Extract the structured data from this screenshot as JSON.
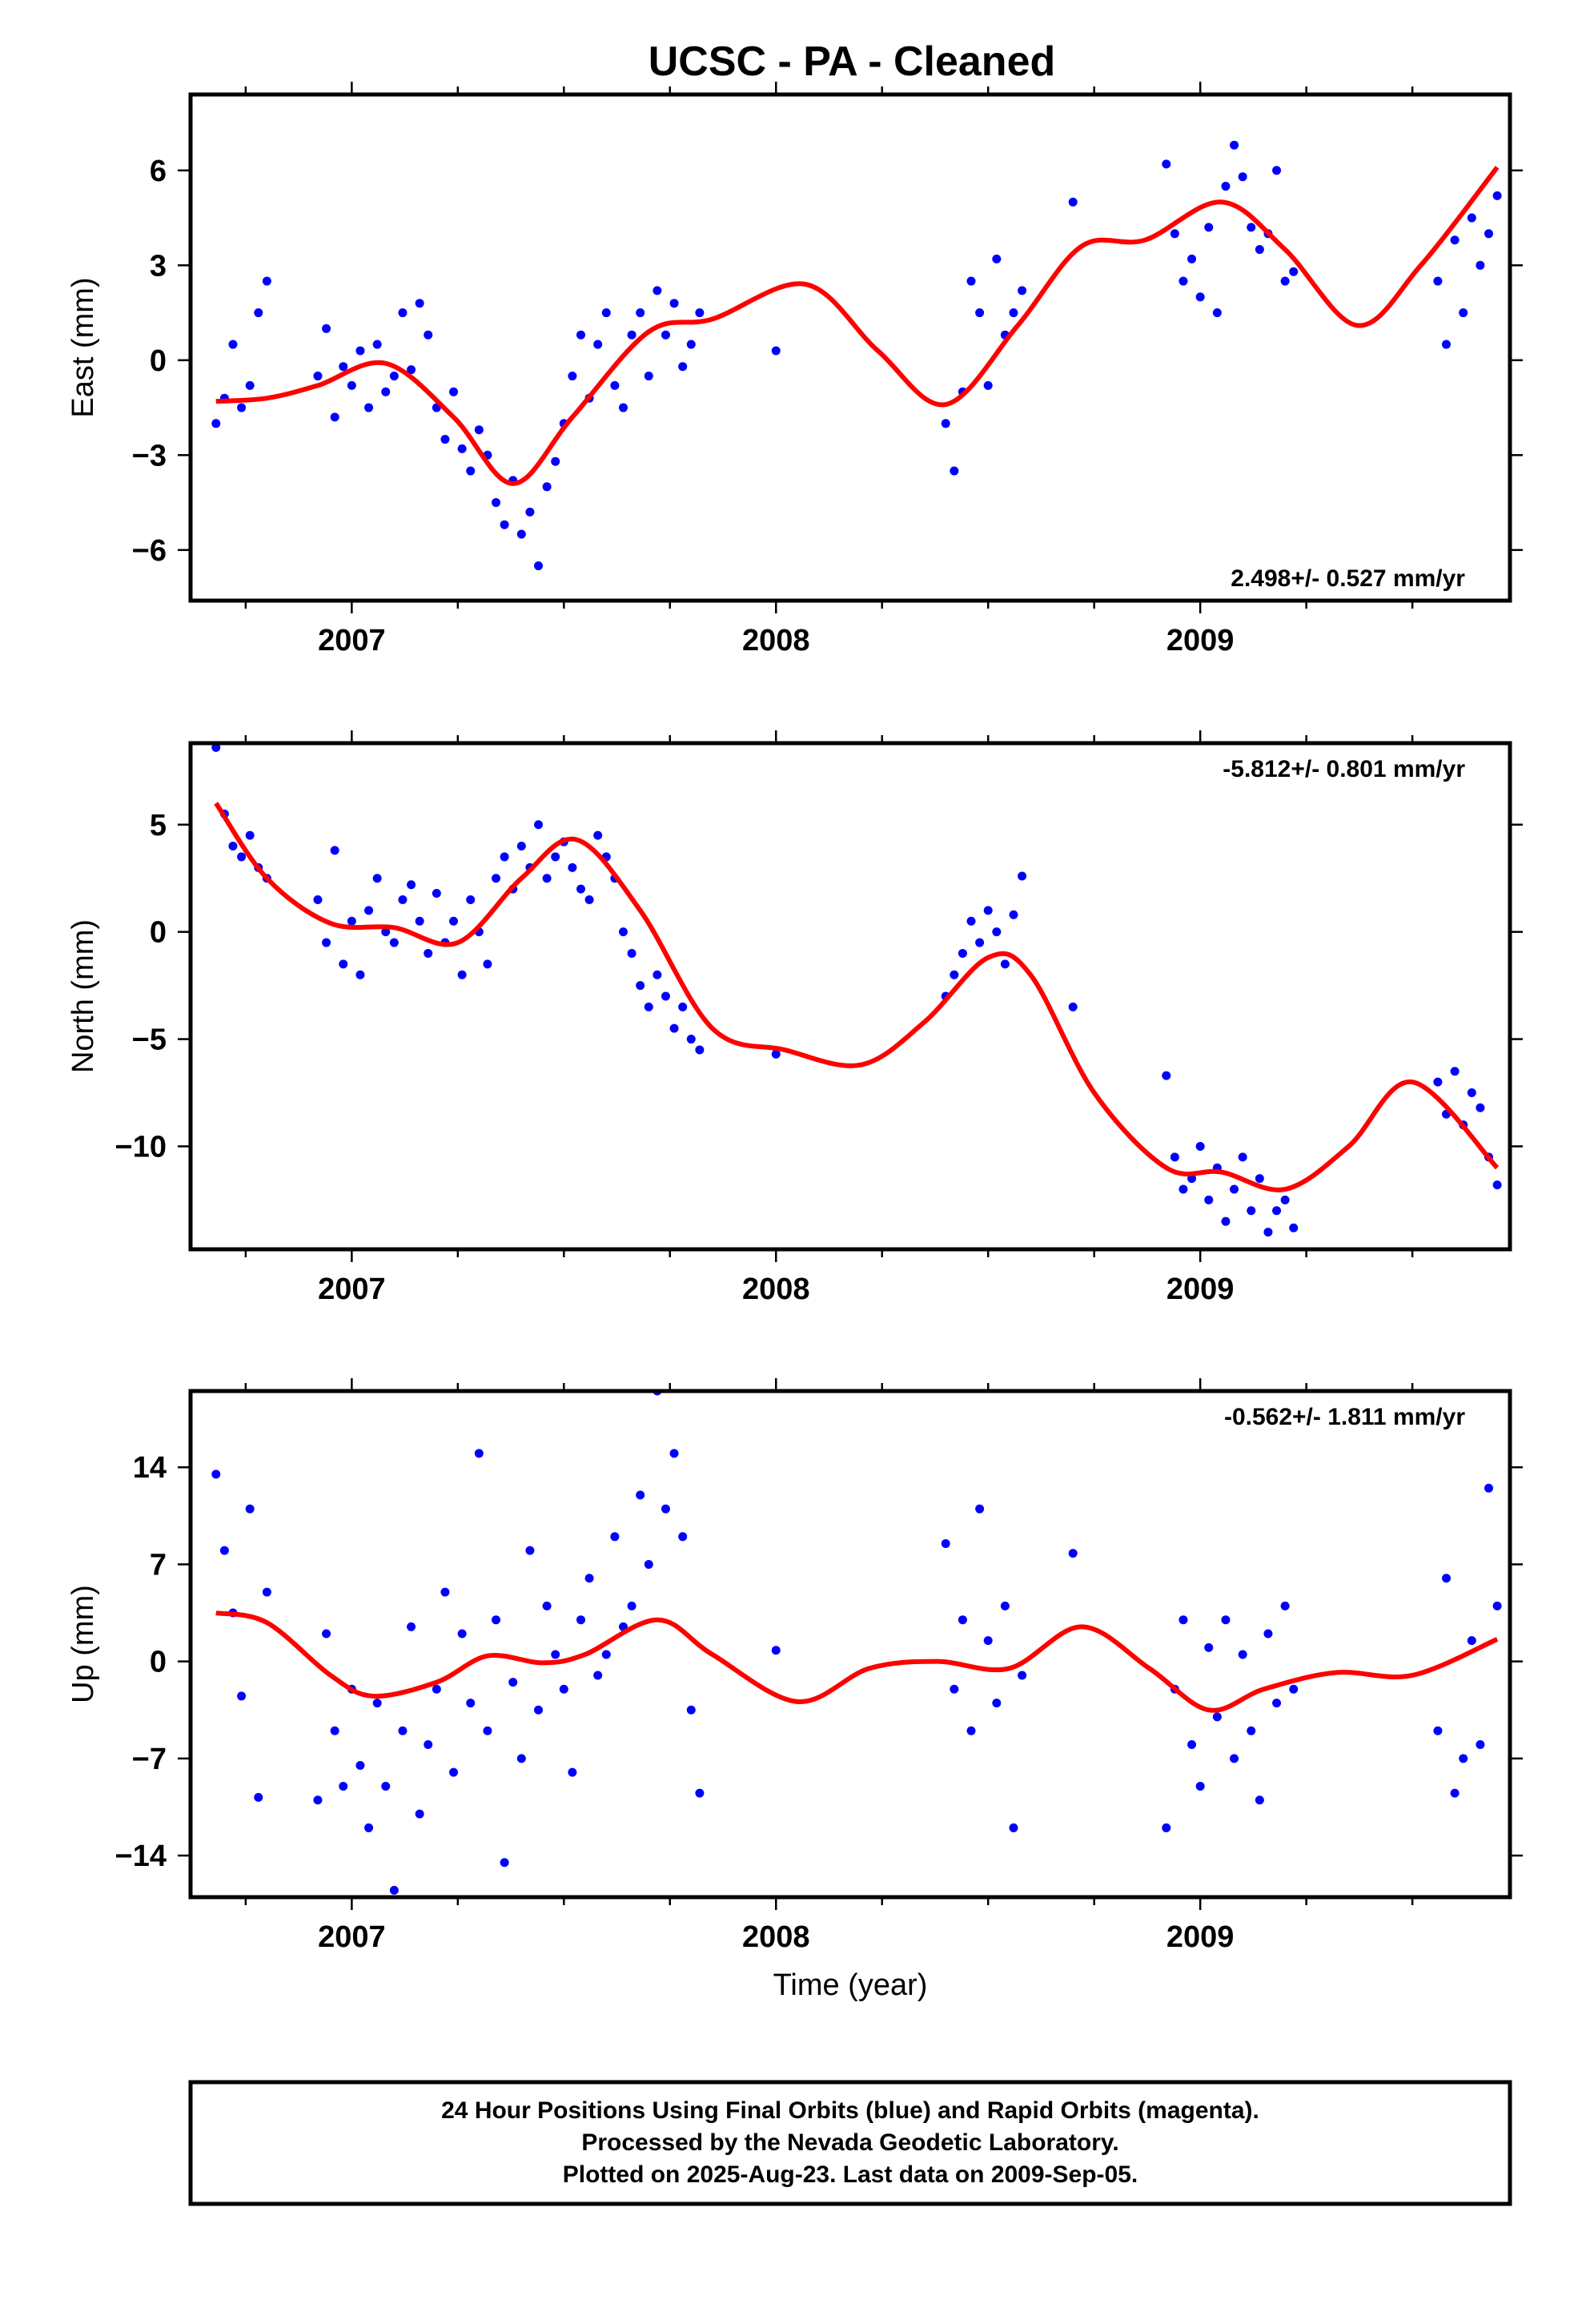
{
  "title": "UCSC  - PA - Cleaned",
  "colors": {
    "points": "#0000ff",
    "fit": "#ff0000",
    "frame": "#000000"
  },
  "chart_data": [
    {
      "type": "scatter",
      "name": "east",
      "ylabel": "East (mm)",
      "xlabel": "",
      "xlim": [
        2006.62,
        2009.73
      ],
      "ylim": [
        -7.6,
        8.4
      ],
      "yticks": [
        -6,
        -3,
        0,
        3,
        6
      ],
      "xticks": [
        2007,
        2008,
        2009
      ],
      "rate": "2.498+/- 0.527 mm/yr",
      "rate_position": "bottom-right",
      "points_x": [
        2006.68,
        2006.7,
        2006.72,
        2006.74,
        2006.76,
        2006.78,
        2006.8,
        2006.92,
        2006.94,
        2006.96,
        2006.98,
        2007.0,
        2007.02,
        2007.04,
        2007.06,
        2007.08,
        2007.1,
        2007.12,
        2007.14,
        2007.16,
        2007.18,
        2007.2,
        2007.22,
        2007.24,
        2007.26,
        2007.28,
        2007.3,
        2007.32,
        2007.34,
        2007.36,
        2007.38,
        2007.4,
        2007.42,
        2007.44,
        2007.46,
        2007.48,
        2007.5,
        2007.52,
        2007.54,
        2007.56,
        2007.58,
        2007.6,
        2007.62,
        2007.64,
        2007.66,
        2007.68,
        2007.7,
        2007.72,
        2007.74,
        2007.76,
        2007.78,
        2007.8,
        2007.82,
        2008.0,
        2008.4,
        2008.42,
        2008.44,
        2008.46,
        2008.48,
        2008.5,
        2008.52,
        2008.54,
        2008.56,
        2008.58,
        2008.7,
        2008.92,
        2008.94,
        2008.96,
        2008.98,
        2009.0,
        2009.02,
        2009.04,
        2009.06,
        2009.08,
        2009.1,
        2009.12,
        2009.14,
        2009.16,
        2009.18,
        2009.2,
        2009.22,
        2009.56,
        2009.58,
        2009.6,
        2009.62,
        2009.64,
        2009.66,
        2009.68,
        2009.7
      ],
      "points_y": [
        -2.0,
        -1.2,
        0.5,
        -1.5,
        -0.8,
        1.5,
        2.5,
        -0.5,
        1.0,
        -1.8,
        -0.2,
        -0.8,
        0.3,
        -1.5,
        0.5,
        -1.0,
        -0.5,
        1.5,
        -0.3,
        1.8,
        0.8,
        -1.5,
        -2.5,
        -1.0,
        -2.8,
        -3.5,
        -2.2,
        -3.0,
        -4.5,
        -5.2,
        -3.8,
        -5.5,
        -4.8,
        -6.5,
        -4.0,
        -3.2,
        -2.0,
        -0.5,
        0.8,
        -1.2,
        0.5,
        1.5,
        -0.8,
        -1.5,
        0.8,
        1.5,
        -0.5,
        2.2,
        0.8,
        1.8,
        -0.2,
        0.5,
        1.5,
        0.3,
        -2.0,
        -3.5,
        -1.0,
        2.5,
        1.5,
        -0.8,
        3.2,
        0.8,
        1.5,
        2.2,
        5.0,
        6.2,
        4.0,
        2.5,
        3.2,
        2.0,
        4.2,
        1.5,
        5.5,
        6.8,
        5.8,
        4.2,
        3.5,
        4.0,
        6.0,
        2.5,
        2.8,
        2.5,
        0.5,
        3.8,
        1.5,
        4.5,
        3.0,
        4.0,
        5.2
      ],
      "fit_x": [
        2006.68,
        2006.8,
        2006.92,
        2007.08,
        2007.24,
        2007.38,
        2007.52,
        2007.7,
        2007.85,
        2008.07,
        2008.24,
        2008.4,
        2008.57,
        2008.72,
        2008.87,
        2009.05,
        2009.2,
        2009.37,
        2009.52,
        2009.7
      ],
      "fit_y": [
        -1.3,
        -1.2,
        -0.8,
        -0.1,
        -1.8,
        -3.9,
        -1.8,
        0.9,
        1.3,
        2.4,
        0.3,
        -1.4,
        1.1,
        3.6,
        3.8,
        5.0,
        3.5,
        1.1,
        3.0,
        6.1
      ]
    },
    {
      "type": "scatter",
      "name": "north",
      "ylabel": "North (mm)",
      "xlabel": "",
      "xlim": [
        2006.62,
        2009.73
      ],
      "ylim": [
        -14.8,
        8.8
      ],
      "yticks": [
        -10,
        -5,
        0,
        5
      ],
      "xticks": [
        2007,
        2008,
        2009
      ],
      "rate": "-5.812+/- 0.801 mm/yr",
      "rate_position": "top-right",
      "points_x": [
        2006.68,
        2006.7,
        2006.72,
        2006.74,
        2006.76,
        2006.78,
        2006.8,
        2006.92,
        2006.94,
        2006.96,
        2006.98,
        2007.0,
        2007.02,
        2007.04,
        2007.06,
        2007.08,
        2007.1,
        2007.12,
        2007.14,
        2007.16,
        2007.18,
        2007.2,
        2007.22,
        2007.24,
        2007.26,
        2007.28,
        2007.3,
        2007.32,
        2007.34,
        2007.36,
        2007.38,
        2007.4,
        2007.42,
        2007.44,
        2007.46,
        2007.48,
        2007.5,
        2007.52,
        2007.54,
        2007.56,
        2007.58,
        2007.6,
        2007.62,
        2007.64,
        2007.66,
        2007.68,
        2007.7,
        2007.72,
        2007.74,
        2007.76,
        2007.78,
        2007.8,
        2007.82,
        2008.0,
        2008.4,
        2008.42,
        2008.44,
        2008.46,
        2008.48,
        2008.5,
        2008.52,
        2008.54,
        2008.56,
        2008.58,
        2008.7,
        2008.92,
        2008.94,
        2008.96,
        2008.98,
        2009.0,
        2009.02,
        2009.04,
        2009.06,
        2009.08,
        2009.1,
        2009.12,
        2009.14,
        2009.16,
        2009.18,
        2009.2,
        2009.22,
        2009.56,
        2009.58,
        2009.6,
        2009.62,
        2009.64,
        2009.66,
        2009.68,
        2009.7
      ],
      "points_y": [
        8.6,
        5.5,
        4.0,
        3.5,
        4.5,
        3.0,
        2.5,
        1.5,
        -0.5,
        3.8,
        -1.5,
        0.5,
        -2.0,
        1.0,
        2.5,
        0.0,
        -0.5,
        1.5,
        2.2,
        0.5,
        -1.0,
        1.8,
        -0.5,
        0.5,
        -2.0,
        1.5,
        0.0,
        -1.5,
        2.5,
        3.5,
        2.0,
        4.0,
        3.0,
        5.0,
        2.5,
        3.5,
        4.2,
        3.0,
        2.0,
        1.5,
        4.5,
        3.5,
        2.5,
        0.0,
        -1.0,
        -2.5,
        -3.5,
        -2.0,
        -3.0,
        -4.5,
        -3.5,
        -5.0,
        -5.5,
        -5.7,
        -3.0,
        -2.0,
        -1.0,
        0.5,
        -0.5,
        1.0,
        0.0,
        -1.5,
        0.8,
        2.6,
        -3.5,
        -6.7,
        -10.5,
        -12.0,
        -11.5,
        -10.0,
        -12.5,
        -11.0,
        -13.5,
        -12.0,
        -10.5,
        -13.0,
        -11.5,
        -14.0,
        -13.0,
        -12.5,
        -13.8,
        -7.0,
        -8.5,
        -6.5,
        -9.0,
        -7.5,
        -8.2,
        -10.5,
        -11.8
      ],
      "fit_x": [
        2006.68,
        2006.8,
        2006.95,
        2007.1,
        2007.25,
        2007.4,
        2007.53,
        2007.68,
        2007.85,
        2008.02,
        2008.2,
        2008.35,
        2008.5,
        2008.6,
        2008.75,
        2008.92,
        2009.05,
        2009.2,
        2009.35,
        2009.5,
        2009.7
      ],
      "fit_y": [
        6.0,
        2.5,
        0.4,
        0.2,
        -0.5,
        2.5,
        4.3,
        1.0,
        -4.5,
        -5.5,
        -6.2,
        -4.2,
        -1.2,
        -2.0,
        -7.5,
        -11.0,
        -11.2,
        -12.0,
        -10.0,
        -7.0,
        -11.0
      ]
    },
    {
      "type": "scatter",
      "name": "up",
      "ylabel": "Up (mm)",
      "xlabel": "Time (year)",
      "xlim": [
        2006.62,
        2009.73
      ],
      "ylim": [
        -17.0,
        19.5
      ],
      "yticks": [
        -14,
        -7,
        0,
        7,
        14
      ],
      "xticks": [
        2007,
        2008,
        2009
      ],
      "rate": "-0.562+/- 1.811 mm/yr",
      "rate_position": "top-right",
      "points_x": [
        2006.68,
        2006.7,
        2006.72,
        2006.74,
        2006.76,
        2006.78,
        2006.8,
        2006.92,
        2006.94,
        2006.96,
        2006.98,
        2007.0,
        2007.02,
        2007.04,
        2007.06,
        2007.08,
        2007.1,
        2007.12,
        2007.14,
        2007.16,
        2007.18,
        2007.2,
        2007.22,
        2007.24,
        2007.26,
        2007.28,
        2007.3,
        2007.32,
        2007.34,
        2007.36,
        2007.38,
        2007.4,
        2007.42,
        2007.44,
        2007.46,
        2007.48,
        2007.5,
        2007.52,
        2007.54,
        2007.56,
        2007.58,
        2007.6,
        2007.62,
        2007.64,
        2007.66,
        2007.68,
        2007.7,
        2007.72,
        2007.74,
        2007.76,
        2007.78,
        2007.8,
        2007.82,
        2008.0,
        2008.4,
        2008.42,
        2008.44,
        2008.46,
        2008.48,
        2008.5,
        2008.52,
        2008.54,
        2008.56,
        2008.58,
        2008.7,
        2008.92,
        2008.94,
        2008.96,
        2008.98,
        2009.0,
        2009.02,
        2009.04,
        2009.06,
        2009.08,
        2009.1,
        2009.12,
        2009.14,
        2009.16,
        2009.18,
        2009.2,
        2009.22,
        2009.56,
        2009.58,
        2009.6,
        2009.62,
        2009.64,
        2009.66,
        2009.68,
        2009.7
      ],
      "points_y": [
        13.5,
        8.0,
        3.5,
        -2.5,
        11.0,
        -9.8,
        5.0,
        -10.0,
        2.0,
        -5.0,
        -9.0,
        -2.0,
        -7.5,
        -12.0,
        -3.0,
        -9.0,
        -16.5,
        -5.0,
        2.5,
        -11.0,
        -6.0,
        -2.0,
        5.0,
        -8.0,
        2.0,
        -3.0,
        15.0,
        -5.0,
        3.0,
        -14.5,
        -1.5,
        -7.0,
        8.0,
        -3.5,
        4.0,
        0.5,
        -2.0,
        -8.0,
        3.0,
        6.0,
        -1.0,
        0.5,
        9.0,
        2.5,
        4.0,
        12.0,
        7.0,
        19.5,
        11.0,
        15.0,
        9.0,
        -3.5,
        -9.5,
        0.8,
        8.5,
        -2.0,
        3.0,
        -5.0,
        11.0,
        1.5,
        -3.0,
        4.0,
        -12.0,
        -1.0,
        7.8,
        -12.0,
        -2.0,
        3.0,
        -6.0,
        -9.0,
        1.0,
        -4.0,
        3.0,
        -7.0,
        0.5,
        -5.0,
        -10.0,
        2.0,
        -3.0,
        4.0,
        -2.0,
        -5.0,
        6.0,
        -9.5,
        -7.0,
        1.5,
        -6.0,
        12.5,
        4.0
      ],
      "fit_x": [
        2006.68,
        2006.8,
        2006.95,
        2007.05,
        2007.2,
        2007.32,
        2007.45,
        2007.55,
        2007.72,
        2007.85,
        2008.05,
        2008.22,
        2008.38,
        2008.55,
        2008.72,
        2008.88,
        2009.02,
        2009.15,
        2009.32,
        2009.5,
        2009.7
      ],
      "fit_y": [
        3.5,
        2.8,
        -1.0,
        -2.5,
        -1.5,
        0.4,
        -0.1,
        0.5,
        3.0,
        0.5,
        -2.9,
        -0.5,
        0.0,
        -0.5,
        2.5,
        -0.5,
        -3.5,
        -2.0,
        -0.8,
        -1.0,
        1.6
      ]
    }
  ],
  "footer": {
    "line1": "24 Hour Positions Using Final Orbits (blue) and Rapid Orbits (magenta).",
    "line2": "Processed by the Nevada Geodetic Laboratory.",
    "line3": "Plotted on 2025-Aug-23. Last data on 2009-Sep-05."
  }
}
